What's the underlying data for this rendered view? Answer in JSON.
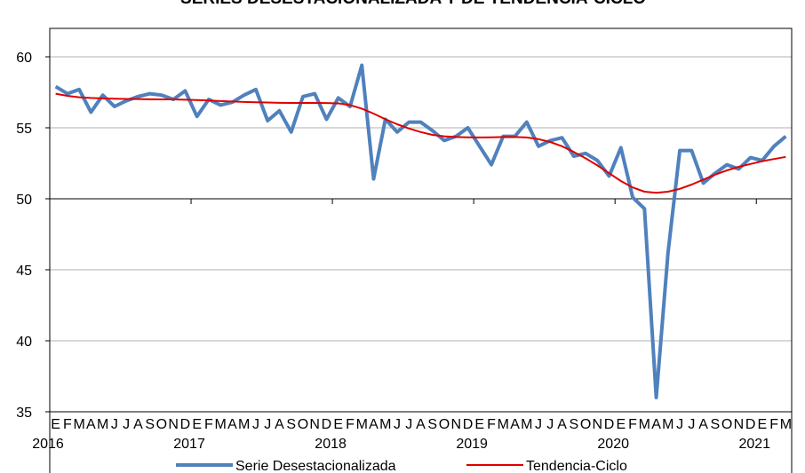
{
  "chart_data": {
    "type": "line",
    "title": "SERIES DESESTACIONALIZADA Y DE TENDENCIA-CICLO",
    "xlabel": "",
    "ylabel": "",
    "ylim": [
      35,
      62
    ],
    "yticks": [
      35,
      40,
      45,
      50,
      55,
      60
    ],
    "xaxis_crosses_at": 50,
    "grid": "horizontal",
    "legend_position": "bottom",
    "month_letters": [
      "E",
      "F",
      "M",
      "A",
      "M",
      "J",
      "J",
      "A",
      "S",
      "O",
      "N",
      "D"
    ],
    "years": [
      "2016",
      "2017",
      "2018",
      "2019",
      "2020",
      "2021"
    ],
    "x": [
      "2016-01",
      "2016-02",
      "2016-03",
      "2016-04",
      "2016-05",
      "2016-06",
      "2016-07",
      "2016-08",
      "2016-09",
      "2016-10",
      "2016-11",
      "2016-12",
      "2017-01",
      "2017-02",
      "2017-03",
      "2017-04",
      "2017-05",
      "2017-06",
      "2017-07",
      "2017-08",
      "2017-09",
      "2017-10",
      "2017-11",
      "2017-12",
      "2018-01",
      "2018-02",
      "2018-03",
      "2018-04",
      "2018-05",
      "2018-06",
      "2018-07",
      "2018-08",
      "2018-09",
      "2018-10",
      "2018-11",
      "2018-12",
      "2019-01",
      "2019-02",
      "2019-03",
      "2019-04",
      "2019-05",
      "2019-06",
      "2019-07",
      "2019-08",
      "2019-09",
      "2019-10",
      "2019-11",
      "2019-12",
      "2020-01",
      "2020-02",
      "2020-03",
      "2020-04",
      "2020-05",
      "2020-06",
      "2020-07",
      "2020-08",
      "2020-09",
      "2020-10",
      "2020-11",
      "2020-12",
      "2021-01",
      "2021-02",
      "2021-03"
    ],
    "series": [
      {
        "name": "Serie Desestacionalizada",
        "color": "#4F81BD",
        "values": [
          57.9,
          57.4,
          57.7,
          56.1,
          57.3,
          56.5,
          56.9,
          57.2,
          57.4,
          57.3,
          57.0,
          57.6,
          55.8,
          57.0,
          56.6,
          56.8,
          57.3,
          57.7,
          55.5,
          56.2,
          54.7,
          57.2,
          57.4,
          55.6,
          57.1,
          56.5,
          59.4,
          51.4,
          55.6,
          54.7,
          55.4,
          55.4,
          54.8,
          54.1,
          54.4,
          55.0,
          53.7,
          52.4,
          54.4,
          54.4,
          55.4,
          53.7,
          54.1,
          54.3,
          53.0,
          53.2,
          52.7,
          51.6,
          53.6,
          50.1,
          49.3,
          36.0,
          46.2,
          53.4,
          53.4,
          51.1,
          51.8,
          52.4,
          52.1,
          52.9,
          52.7,
          53.7,
          54.4
        ]
      },
      {
        "name": "Tendencia-Ciclo",
        "color": "#E00000",
        "values": [
          57.4,
          57.25,
          57.15,
          57.1,
          57.07,
          57.05,
          57.03,
          57.02,
          57.01,
          57.0,
          57.0,
          56.98,
          56.95,
          56.92,
          56.88,
          56.85,
          56.82,
          56.8,
          56.78,
          56.76,
          56.75,
          56.75,
          56.75,
          56.74,
          56.72,
          56.6,
          56.35,
          56.0,
          55.6,
          55.25,
          54.95,
          54.7,
          54.5,
          54.4,
          54.35,
          54.33,
          54.32,
          54.33,
          54.35,
          54.35,
          54.32,
          54.2,
          54.0,
          53.7,
          53.3,
          52.85,
          52.35,
          51.8,
          51.25,
          50.8,
          50.5,
          50.42,
          50.5,
          50.7,
          51.0,
          51.35,
          51.7,
          52.0,
          52.25,
          52.45,
          52.65,
          52.8,
          52.95
        ]
      }
    ]
  }
}
